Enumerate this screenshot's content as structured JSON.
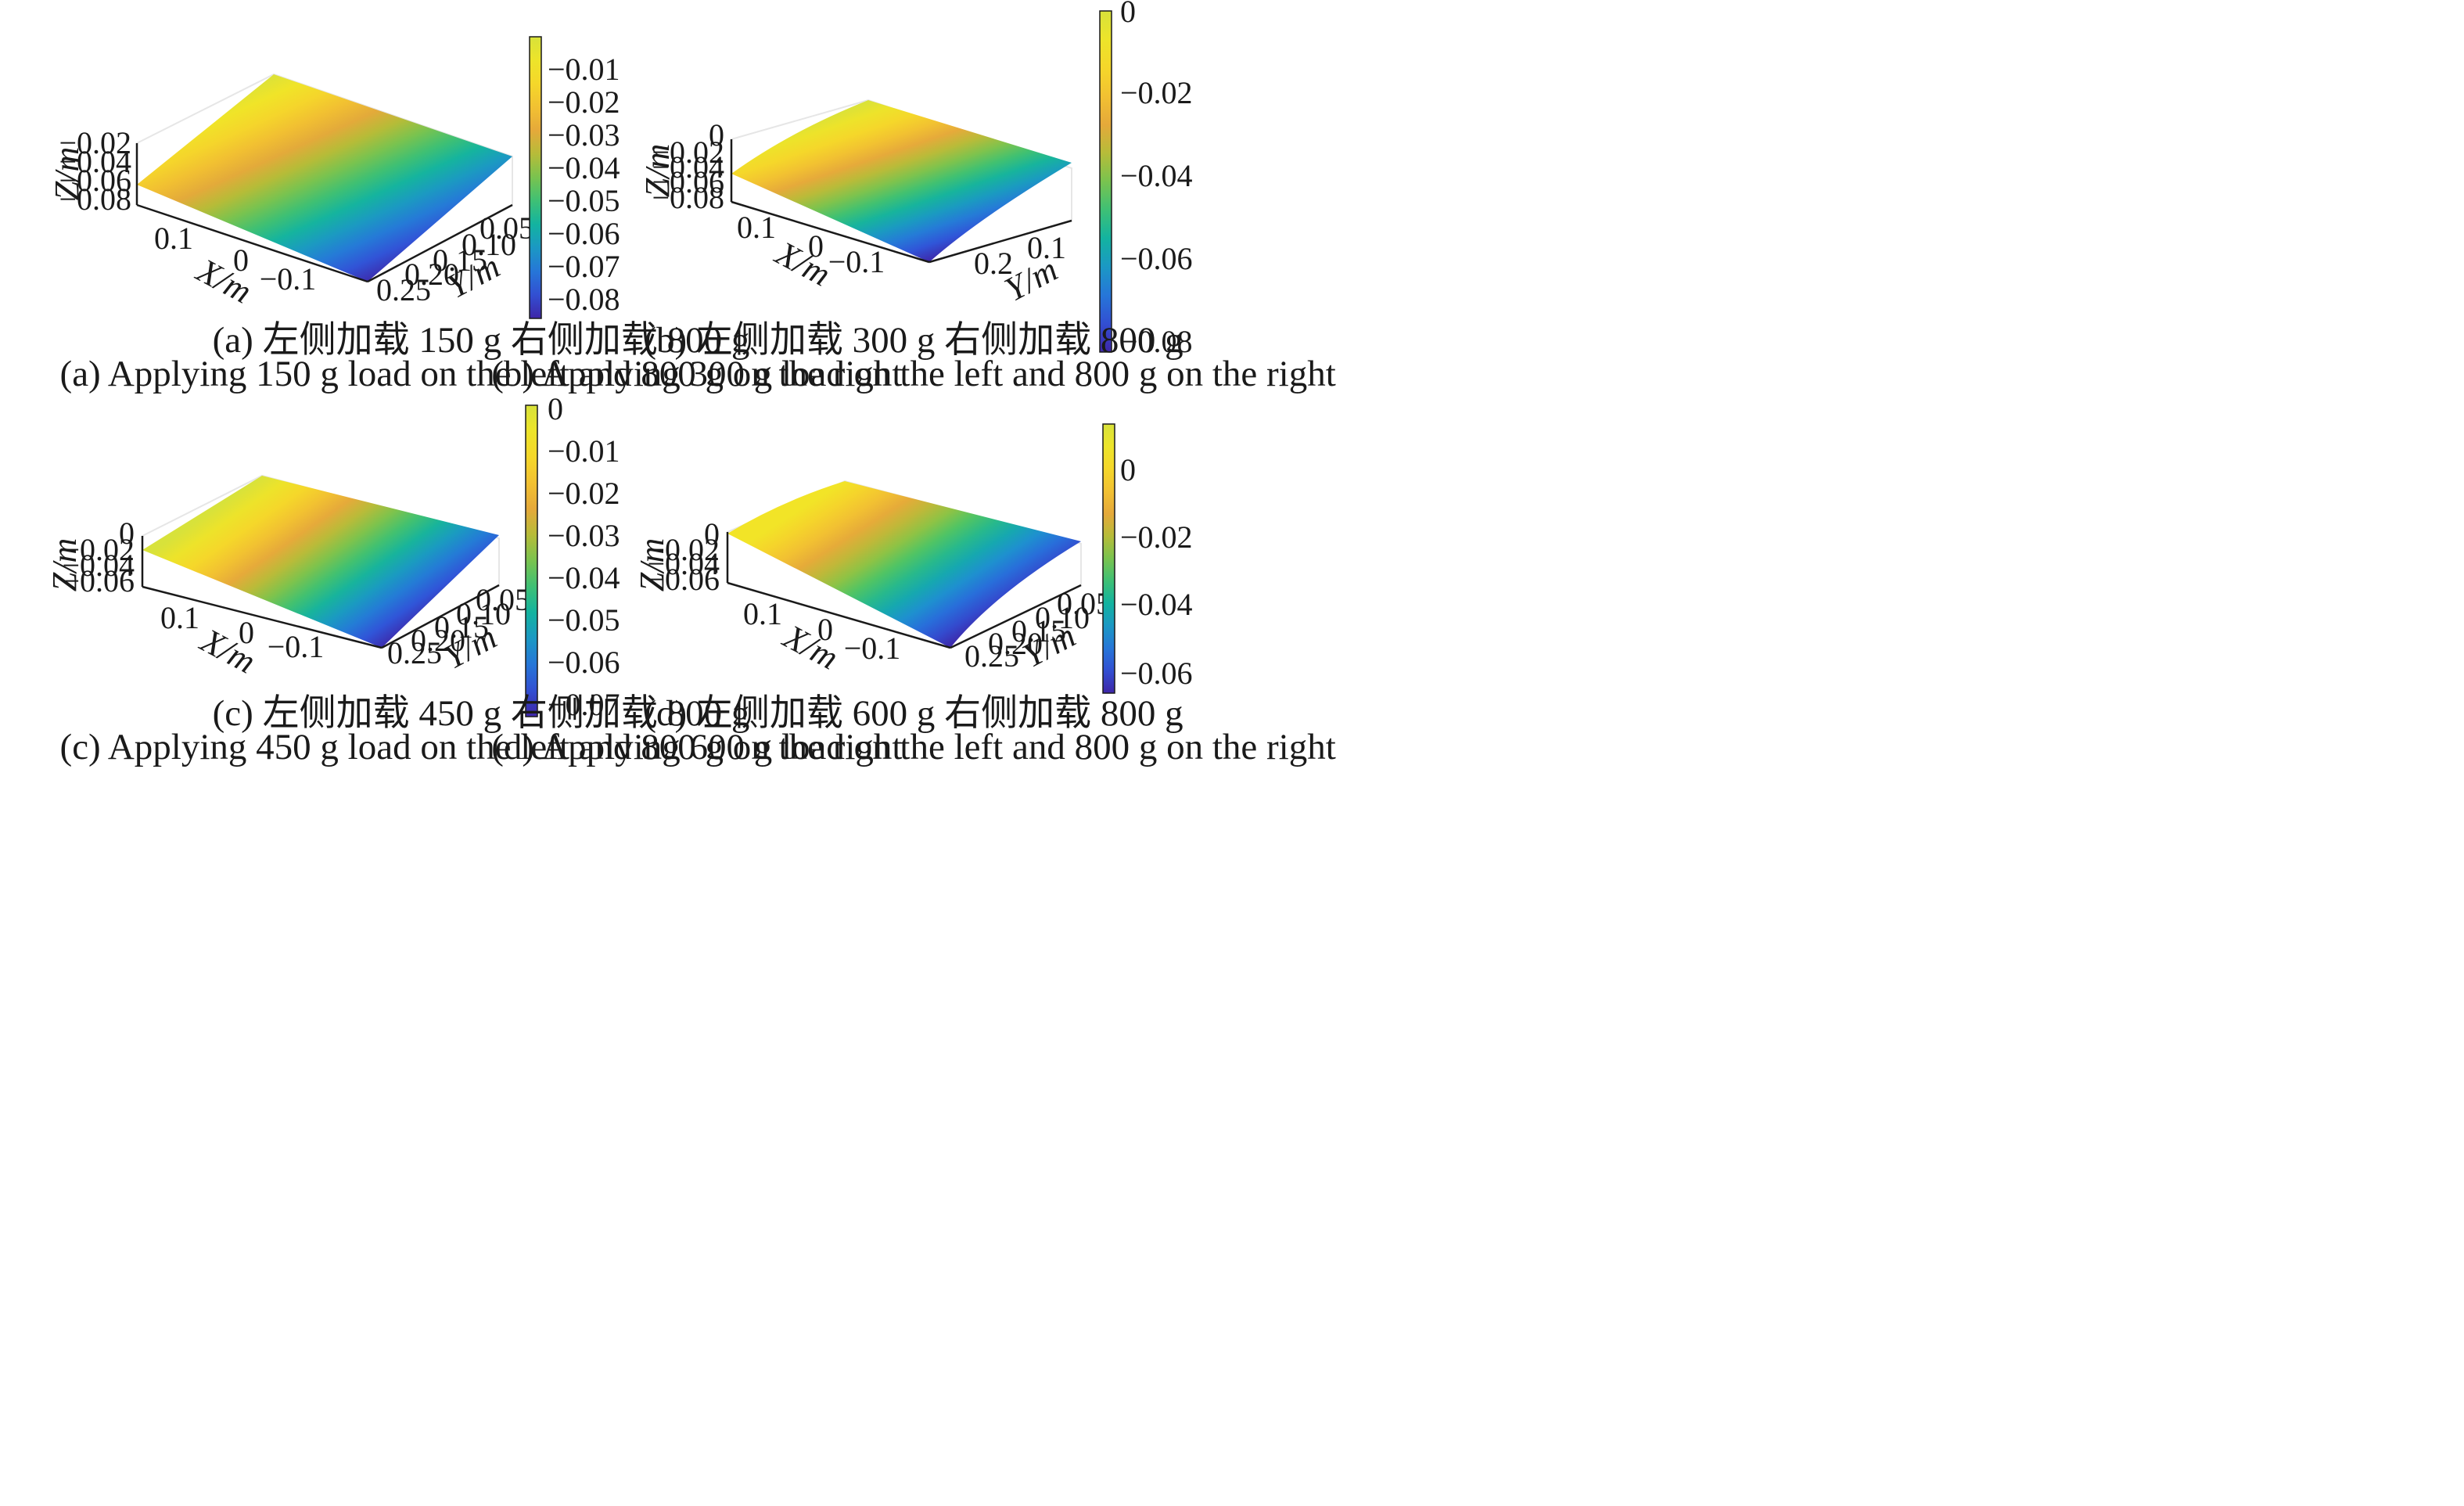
{
  "colormap": [
    "#3e26a8",
    "#2e5de0",
    "#1e8fd0",
    "#13b3a0",
    "#4cc466",
    "#a6c238",
    "#e5a93a",
    "#f6c92f",
    "#f4e425",
    "#d8e23a"
  ],
  "chart_data": [
    {
      "type": "surface",
      "caption_cn": "(a) 左侧加载 150 g 右侧加载 800 g",
      "caption_en": "(a) Applying 150 g load on the left and 800 g on the right",
      "xlabel": "X/m",
      "ylabel": "Y/m",
      "zlabel": "Z/m",
      "x_ticks": [
        "0.1",
        "0",
        "−0.1"
      ],
      "y_ticks": [
        "0.05",
        "0.10",
        "0.15",
        "0.20",
        "0.25"
      ],
      "z_ticks": [
        "−0.02",
        "−0.04",
        "−0.06",
        "−0.08"
      ],
      "colorbar_ticks": [
        "−0.01",
        "−0.02",
        "−0.03",
        "−0.04",
        "−0.05",
        "−0.06",
        "−0.07",
        "−0.08"
      ],
      "colorbar_range": [
        -0.085,
        -0.002
      ],
      "surface_edge_z": [
        -0.084,
        -0.003
      ]
    },
    {
      "type": "surface",
      "caption_cn": "(b) 左侧加载 300 g 右侧加载 800 g",
      "caption_en": "(b) Applying 300 g load on the left and 800 g on the right",
      "xlabel": "X/m",
      "ylabel": "Y/m",
      "zlabel": "Z/m",
      "x_ticks": [
        "0.1",
        "0",
        "−0.1"
      ],
      "y_ticks": [
        "0.1",
        "0.2"
      ],
      "z_ticks": [
        "0",
        "−0.02",
        "−0.04",
        "−0.06",
        "−0.08"
      ],
      "colorbar_ticks": [
        "0",
        "−0.02",
        "−0.04",
        "−0.06",
        "−0.08"
      ],
      "colorbar_range": [
        -0.083,
        0.0
      ],
      "surface_edge_z": [
        -0.082,
        0.0
      ]
    },
    {
      "type": "surface",
      "caption_cn": "(c) 左侧加载 450 g 右侧加载 800 g",
      "caption_en": "(c) Applying 450 g load on the left and 800 g on the right",
      "xlabel": "X/m",
      "ylabel": "Y/m",
      "zlabel": "Z/m",
      "x_ticks": [
        "0.1",
        "0",
        "−0.1"
      ],
      "y_ticks": [
        "0.05",
        "0.10",
        "0.15",
        "0.20",
        "0.25"
      ],
      "z_ticks": [
        "0",
        "−0.02",
        "−0.04",
        "−0.06"
      ],
      "colorbar_ticks": [
        "0",
        "−0.01",
        "−0.02",
        "−0.03",
        "−0.04",
        "−0.05",
        "−0.06",
        "−0.07"
      ],
      "colorbar_range": [
        -0.075,
        0.0
      ],
      "surface_edge_z": [
        -0.074,
        0.0
      ]
    },
    {
      "type": "surface",
      "caption_cn": "(d) 左侧加载 600 g 右侧加载 800 g",
      "caption_en": "(d) Applying 600 g load on the left and 800 g on the right",
      "xlabel": "X/m",
      "ylabel": "Y/m",
      "zlabel": "Z/m",
      "x_ticks": [
        "0.1",
        "0",
        "−0.1"
      ],
      "y_ticks": [
        "0.05",
        "0.10",
        "0.15",
        "0.20",
        "0.25"
      ],
      "z_ticks": [
        "0",
        "−0.02",
        "−0.04",
        "−0.06"
      ],
      "colorbar_ticks": [
        "0",
        "−0.02",
        "−0.04",
        "−0.06"
      ],
      "colorbar_range": [
        -0.066,
        0.013
      ],
      "surface_edge_z": [
        -0.066,
        0.005
      ]
    }
  ]
}
